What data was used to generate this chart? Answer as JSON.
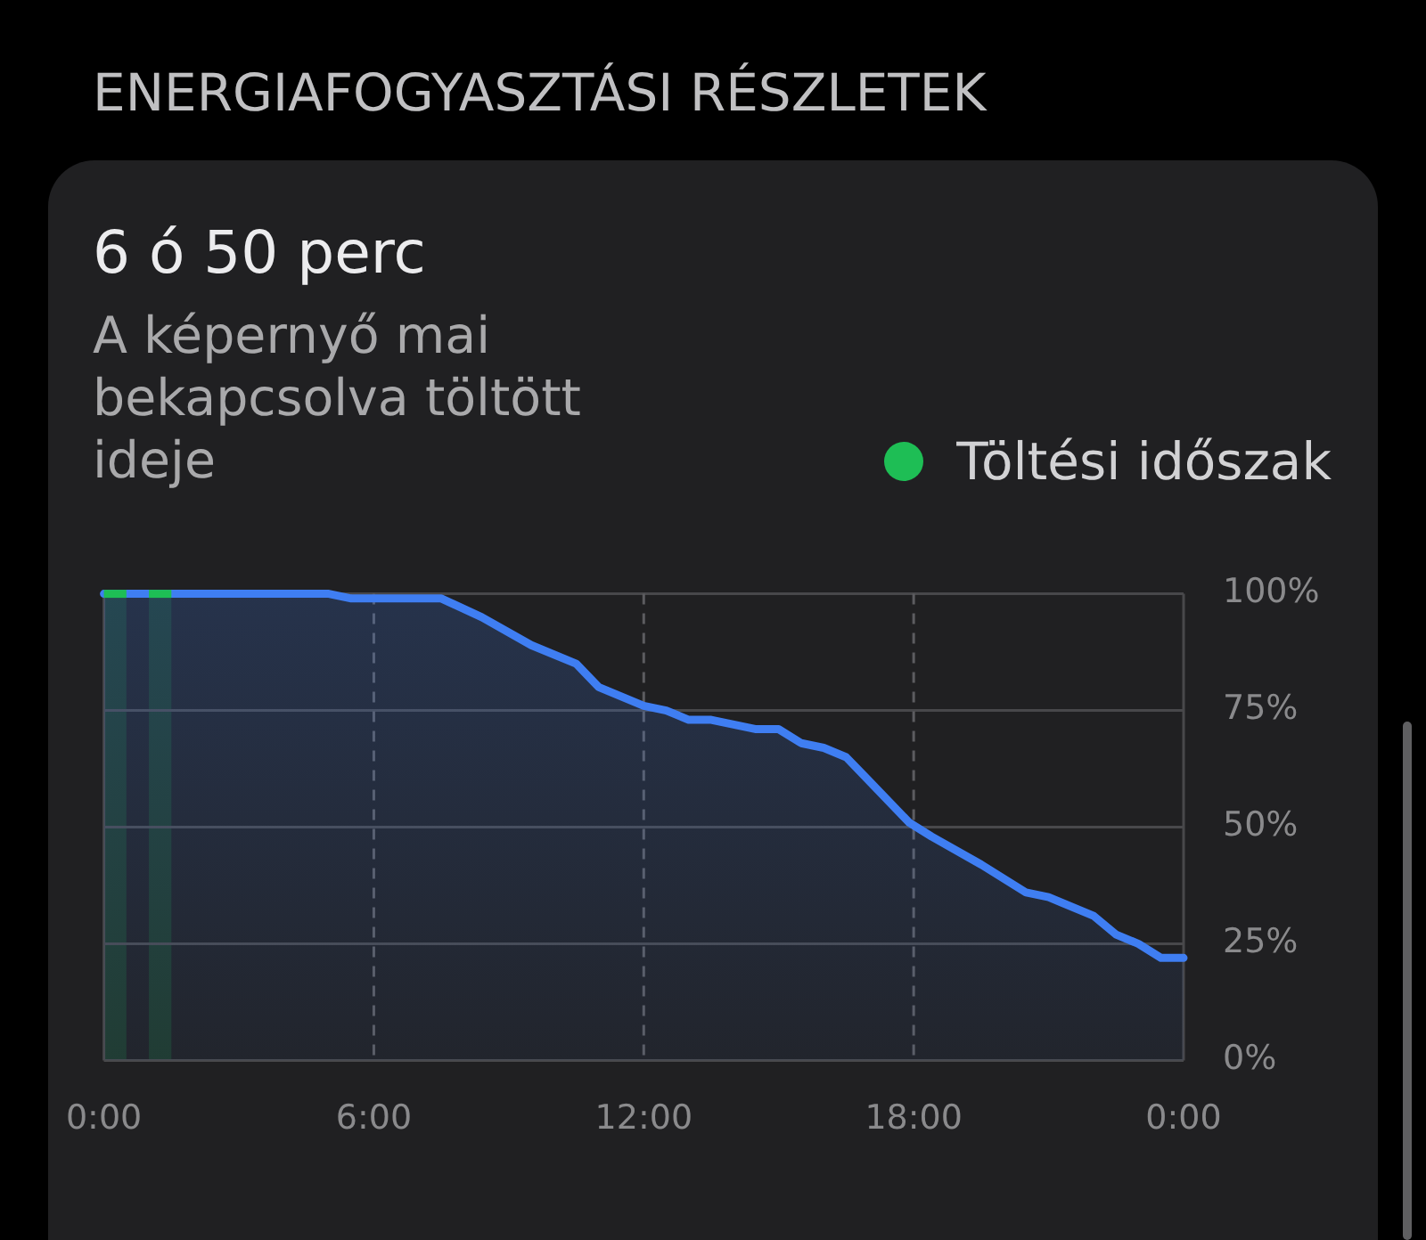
{
  "chart_data": {
    "type": "area",
    "title": "ENERGIAFOGYASZTÁSI RÉSZLETEK",
    "subtitle": "6 ó 50 perc",
    "annotations": [
      "A képernyő mai bekapcsolva töltött ideje"
    ],
    "x": [
      0,
      0.5,
      1,
      1.5,
      5,
      5.5,
      7.5,
      8.4,
      9.5,
      10.5,
      11,
      12,
      12.5,
      13,
      13.5,
      14.5,
      15,
      15.5,
      16,
      16.5,
      17,
      17.9,
      18.4,
      19.5,
      20.5,
      21,
      22,
      22.5,
      23,
      23.5,
      24
    ],
    "series": [
      {
        "color": "#3f7ef2",
        "values": [
          100,
          100,
          100,
          100,
          100,
          99,
          99,
          95,
          89,
          85,
          80,
          76,
          75,
          73,
          73,
          71,
          71,
          68,
          67,
          65,
          60,
          51,
          48,
          42,
          36,
          35,
          31,
          27,
          25,
          22,
          22
        ]
      }
    ],
    "bands": [
      {
        "axis": "x",
        "from": 0,
        "to": 0.5,
        "label": "Töltési időszak",
        "color": "#1ebe55"
      },
      {
        "axis": "x",
        "from": 1,
        "to": 1.5,
        "color": "#1ebe55"
      }
    ],
    "xlim": [
      0,
      24
    ],
    "xticks": [
      {
        "value": 0,
        "label": "0:00"
      },
      {
        "value": 6,
        "label": "6:00"
      },
      {
        "value": 12,
        "label": "12:00"
      },
      {
        "value": 18,
        "label": "18:00"
      },
      {
        "value": 24,
        "label": "0:00"
      }
    ],
    "ylim": [
      0,
      100
    ],
    "yticks": [
      {
        "value": 0,
        "label": "0%"
      },
      {
        "value": 25,
        "label": "25%"
      },
      {
        "value": 50,
        "label": "50%"
      },
      {
        "value": 75,
        "label": "75%"
      },
      {
        "value": 100,
        "label": "100%"
      }
    ],
    "grid": true,
    "legend": "top right"
  }
}
